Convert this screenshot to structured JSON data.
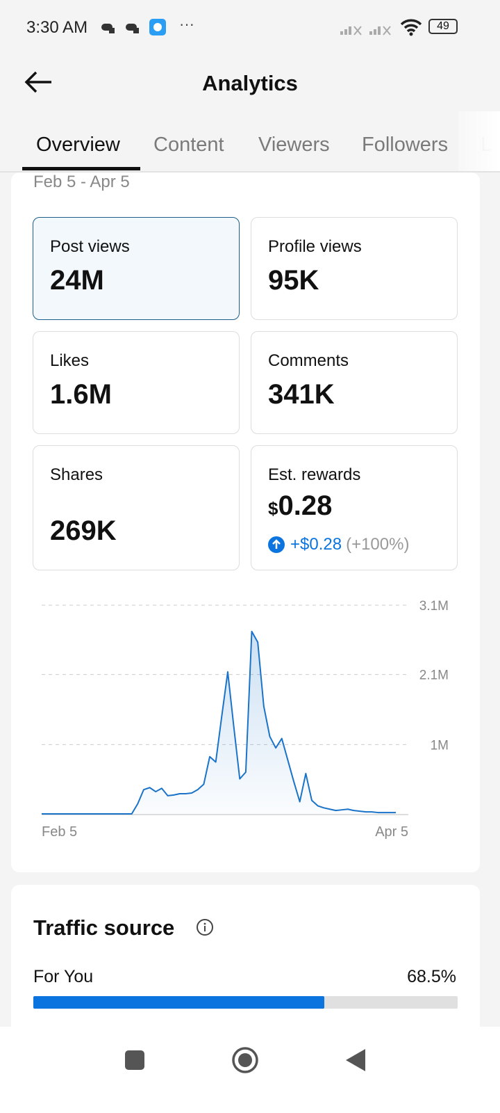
{
  "status_bar": {
    "time": "3:30 AM",
    "battery": "49"
  },
  "header": {
    "title": "Analytics"
  },
  "tabs": [
    {
      "label": "Overview"
    },
    {
      "label": "Content"
    },
    {
      "label": "Viewers"
    },
    {
      "label": "Followers"
    },
    {
      "label": "L"
    }
  ],
  "date_range": "Feb 5 - Apr 5",
  "metrics": [
    {
      "label": "Post views",
      "value": "24M"
    },
    {
      "label": "Profile views",
      "value": "95K"
    },
    {
      "label": "Likes",
      "value": "1.6M"
    },
    {
      "label": "Comments",
      "value": "341K"
    },
    {
      "label": "Shares",
      "value": "269K"
    },
    {
      "label": "Est. rewards",
      "currency": "$",
      "value": "0.28",
      "change": "+$0.28",
      "change_pct": "(+100%)"
    }
  ],
  "chart_data": {
    "type": "area",
    "title": "Post views",
    "xlabel": "",
    "ylabel": "",
    "x_tick_labels": [
      "Feb 5",
      "Apr 5"
    ],
    "y_tick_labels": [
      "1M",
      "2.1M",
      "3.1M"
    ],
    "y_ticks": [
      1.03,
      2.07,
      3.1
    ],
    "ylim": [
      0,
      3.1
    ],
    "unit": "M",
    "values": [
      0,
      0,
      0,
      0,
      0,
      0,
      0,
      0,
      0,
      0,
      0,
      0,
      0,
      0,
      0,
      0,
      0.15,
      0.36,
      0.39,
      0.33,
      0.38,
      0.27,
      0.28,
      0.3,
      0.3,
      0.31,
      0.36,
      0.44,
      0.85,
      0.77,
      1.45,
      2.11,
      1.3,
      0.52,
      0.62,
      2.71,
      2.55,
      1.6,
      1.15,
      0.98,
      1.12,
      0.8,
      0.48,
      0.18,
      0.6,
      0.2,
      0.12,
      0.09,
      0.07,
      0.05,
      0.06,
      0.07,
      0.05,
      0.04,
      0.03,
      0.03,
      0.02,
      0.02,
      0.02,
      0.02
    ],
    "color": "#1a73c8"
  },
  "traffic": {
    "title": "Traffic source",
    "items": [
      {
        "label": "For You",
        "value": "68.5%",
        "fraction": 0.685
      }
    ]
  },
  "colors": {
    "accent": "#0b74de"
  }
}
